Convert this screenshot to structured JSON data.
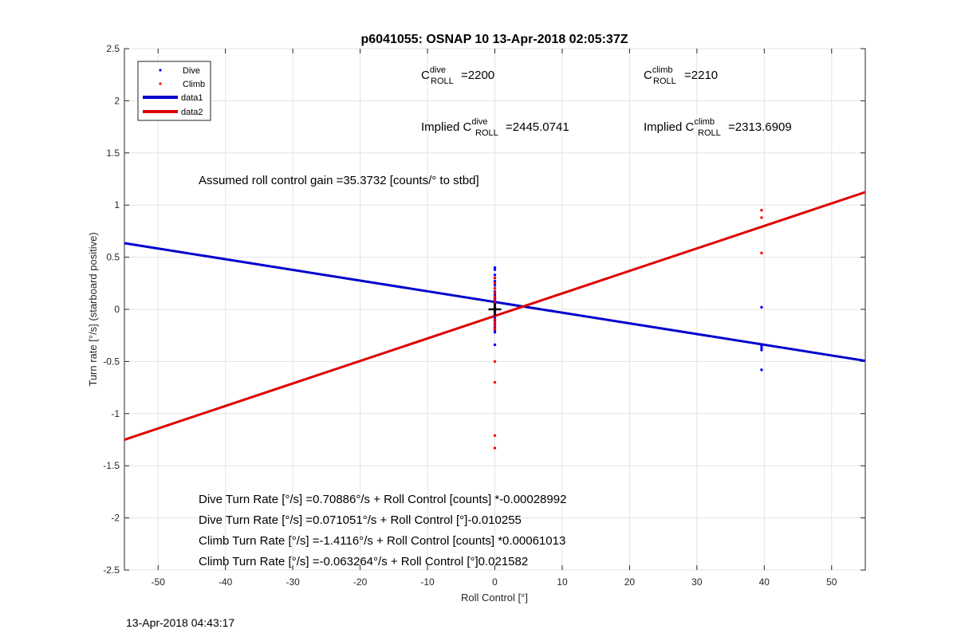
{
  "chart_data": {
    "type": "scatter",
    "title": "p6041055: OSNAP 10 13-Apr-2018 02:05:37Z",
    "xlabel": "Roll Control [°]",
    "ylabel": "Turn rate [°/s] (starboard positive)",
    "xlim": [
      -55,
      55
    ],
    "ylim": [
      -2.5,
      2.5
    ],
    "xticks": [
      -50,
      -40,
      -30,
      -20,
      -10,
      0,
      10,
      20,
      30,
      40,
      50
    ],
    "yticks": [
      -2.5,
      -2,
      -1.5,
      -1,
      -0.5,
      0,
      0.5,
      1,
      1.5,
      2,
      2.5
    ],
    "grid": true,
    "legend_position": "top-left",
    "series": [
      {
        "name": "Dive",
        "kind": "points",
        "color": "#0000ff",
        "x": [
          0,
          0,
          0,
          0,
          0,
          0,
          0,
          0,
          0,
          0,
          0,
          0,
          0,
          0,
          0,
          0,
          0,
          0,
          0,
          0,
          0,
          0,
          0,
          39.6,
          39.6,
          39.6,
          39.6,
          39.6
        ],
        "y": [
          0.4,
          0.38,
          0.33,
          0.3,
          0.27,
          0.23,
          0.2,
          0.17,
          0.14,
          0.11,
          0.08,
          0.05,
          0.02,
          -0.02,
          -0.05,
          -0.08,
          -0.11,
          -0.14,
          -0.17,
          -0.2,
          -0.22,
          -0.34,
          0.1,
          0.02,
          -0.35,
          -0.37,
          -0.39,
          -0.58
        ]
      },
      {
        "name": "Climb",
        "kind": "points",
        "color": "#ff0000",
        "x": [
          0,
          0,
          0,
          0,
          0,
          0,
          0,
          0,
          0,
          0,
          0,
          0,
          0,
          0,
          0,
          0,
          0,
          0,
          0,
          39.6,
          39.6,
          39.6
        ],
        "y": [
          0.3,
          0.25,
          0.2,
          0.16,
          0.12,
          0.09,
          0.06,
          0.03,
          0.0,
          -0.03,
          -0.06,
          -0.1,
          -0.13,
          -0.16,
          -0.19,
          -0.5,
          -0.7,
          -1.21,
          -1.33,
          0.95,
          0.88,
          0.54
        ]
      },
      {
        "name": "data1",
        "kind": "line",
        "color": "#0000cc",
        "x": [
          -55,
          55
        ],
        "y": [
          0.6346,
          -0.4935
        ]
      },
      {
        "name": "data2",
        "kind": "line",
        "color": "#dd0000",
        "x": [
          -55,
          55
        ],
        "y": [
          -1.2503,
          1.1238
        ]
      }
    ],
    "marker": {
      "x": 0,
      "y": 0,
      "symbol": "+"
    },
    "annotations": {
      "c_dive": {
        "base": "C",
        "sup": "dive",
        "sub": "ROLL",
        "value": "=2200"
      },
      "c_climb": {
        "base": "C",
        "sup": "climb",
        "sub": "ROLL",
        "value": "=2210"
      },
      "implied_dive": {
        "prefix": "Implied ",
        "base": "C",
        "sup": "dive",
        "sub": "ROLL",
        "value": "=2445.0741"
      },
      "implied_climb": {
        "prefix": "Implied ",
        "base": "C",
        "sup": "climb",
        "sub": "ROLL",
        "value": "=2313.6909"
      },
      "gain": "Assumed roll control gain =35.3732 [counts/° to stbd]",
      "fit_lines": [
        "Dive Turn Rate [°/s] =0.70886°/s + Roll Control [counts] *-0.00028992",
        "Dive Turn Rate [°/s] =0.071051°/s + Roll Control [°]-0.010255",
        "Climb Turn Rate [°/s] =-1.4116°/s + Roll Control [counts] *0.00061013",
        "Climb Turn Rate [°/s] =-0.063264°/s + Roll Control [°]0.021582"
      ]
    }
  },
  "footer": {
    "timestamp": "13-Apr-2018 04:43:17"
  }
}
